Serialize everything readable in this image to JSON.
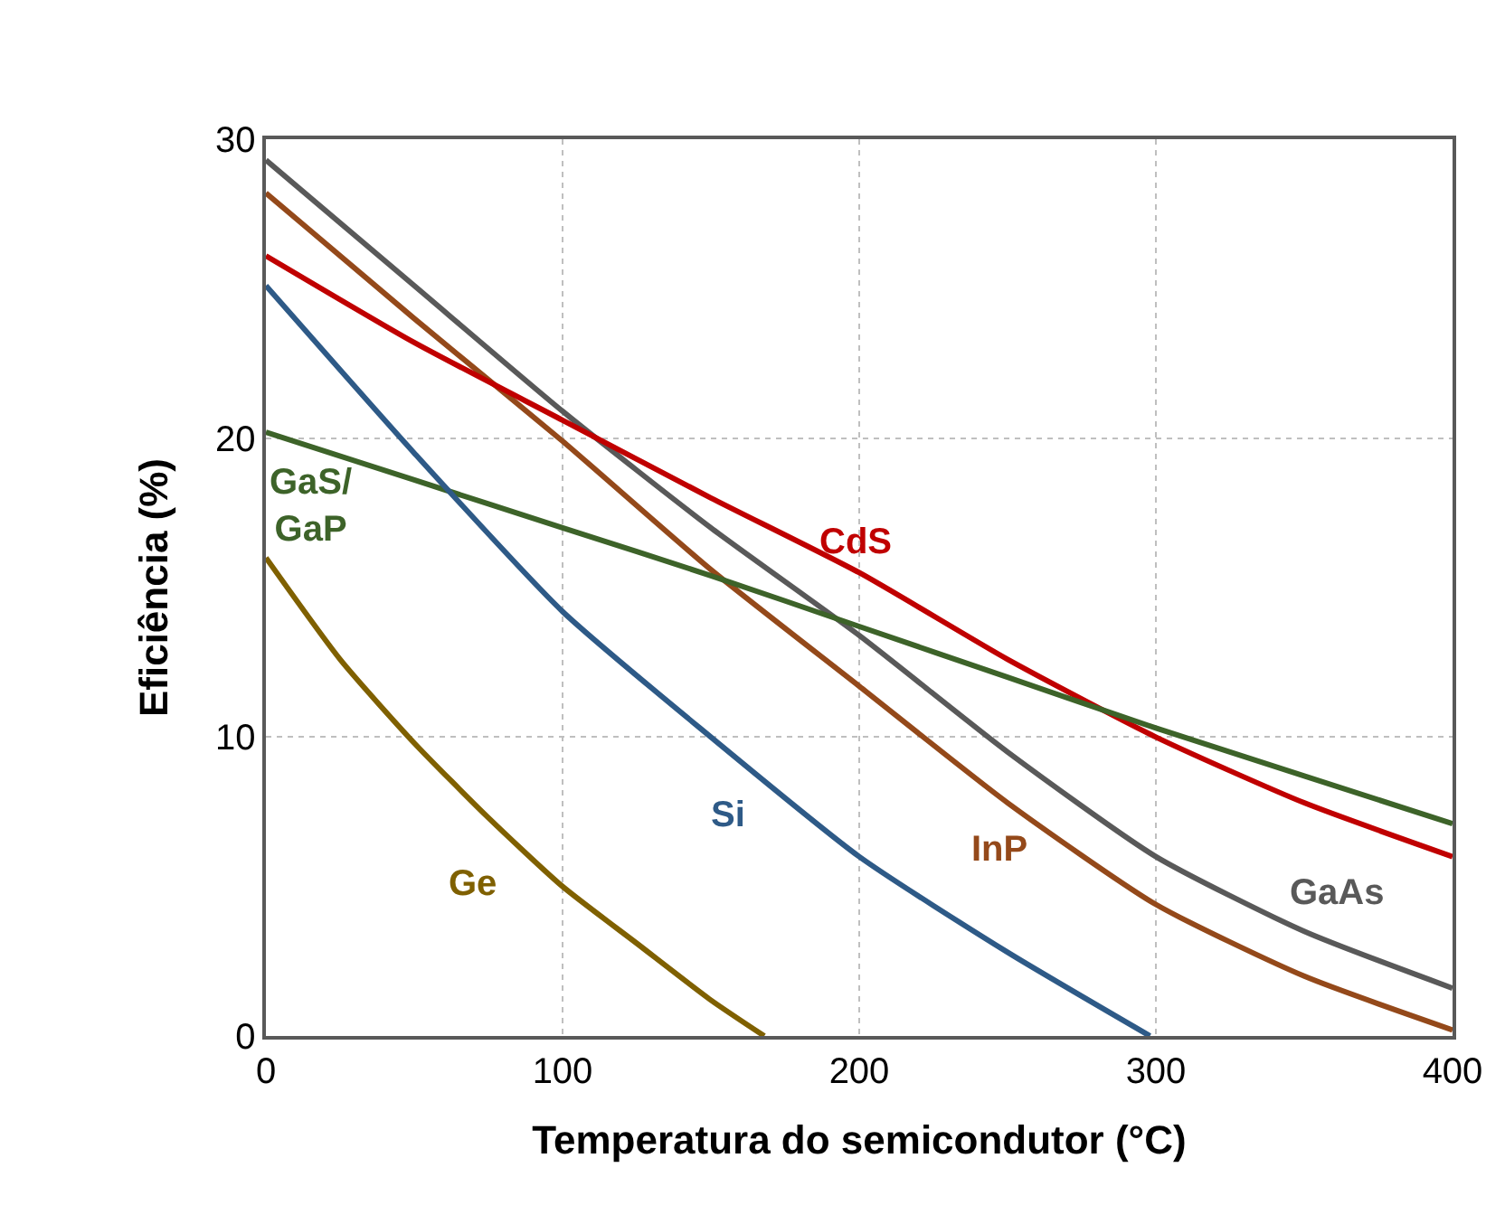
{
  "chart_data": {
    "type": "line",
    "xlabel": "Temperatura do semicondutor (°C)",
    "ylabel": "Eficiência (%)",
    "xlim": [
      0,
      400
    ],
    "xticks": [
      0,
      100,
      200,
      300,
      400
    ],
    "ylim": [
      0,
      30
    ],
    "yticks": [
      0,
      10,
      20,
      30
    ],
    "grid": true,
    "legend": false,
    "marker": "none",
    "line_style": "solid",
    "series": [
      {
        "name": "GaAs",
        "color": "#595959",
        "x": [
          0,
          50,
          100,
          150,
          200,
          250,
          300,
          350,
          400
        ],
        "values": [
          29.3,
          25.1,
          20.9,
          17.0,
          13.4,
          9.5,
          6.0,
          3.5,
          1.6
        ]
      },
      {
        "name": "InP",
        "color": "#94491a",
        "x": [
          0,
          50,
          100,
          150,
          200,
          250,
          300,
          350,
          400
        ],
        "values": [
          28.2,
          24.0,
          19.9,
          15.6,
          11.7,
          7.8,
          4.4,
          2.0,
          0.2
        ]
      },
      {
        "name": "CdS",
        "color": "#c00000",
        "x": [
          0,
          50,
          100,
          150,
          200,
          250,
          300,
          350,
          400
        ],
        "values": [
          26.1,
          23.2,
          20.6,
          18.0,
          15.5,
          12.6,
          10.0,
          7.8,
          6.0
        ]
      },
      {
        "name": "GaS/GaP",
        "color": "#3d6329",
        "x": [
          0,
          50,
          100,
          150,
          200,
          250,
          300,
          350,
          400
        ],
        "values": [
          20.2,
          18.6,
          17.0,
          15.4,
          13.7,
          12.0,
          10.3,
          8.7,
          7.1
        ]
      },
      {
        "name": "Si",
        "color": "#2e5a87",
        "x": [
          0,
          50,
          100,
          150,
          200,
          250,
          298
        ],
        "values": [
          25.1,
          19.5,
          14.2,
          10.0,
          6.0,
          2.8,
          0
        ]
      },
      {
        "name": "Ge",
        "color": "#7f6000",
        "x": [
          0,
          25,
          50,
          75,
          100,
          125,
          150,
          168
        ],
        "values": [
          16.0,
          12.6,
          9.8,
          7.3,
          5.0,
          3.1,
          1.2,
          0
        ]
      }
    ]
  }
}
